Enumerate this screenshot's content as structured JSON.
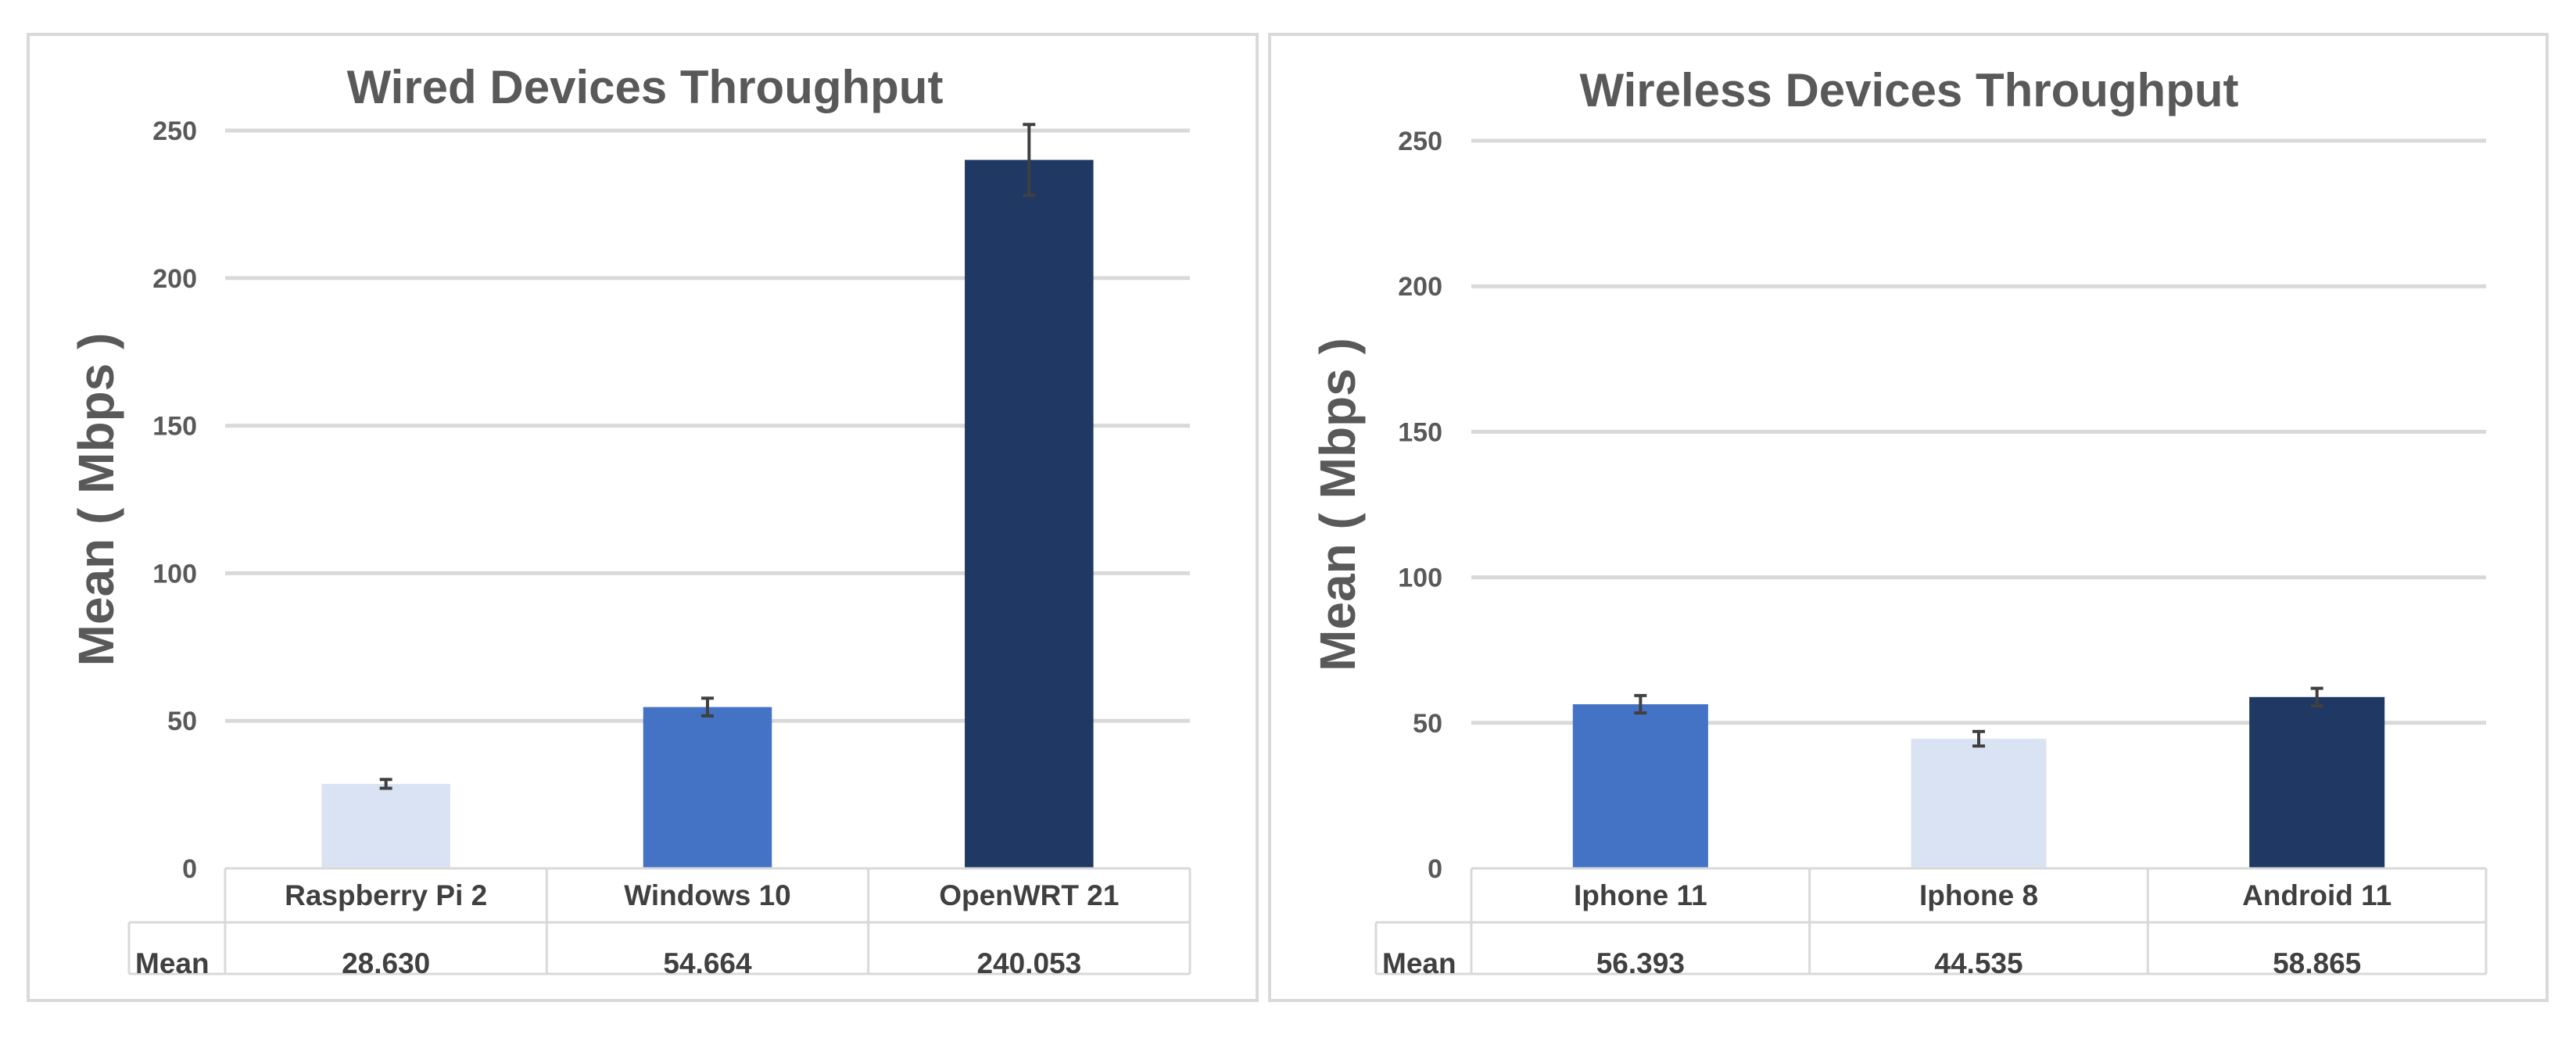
{
  "chart_data": [
    {
      "type": "bar",
      "title": "Wired Devices Throughput",
      "xlabel": "",
      "ylabel": "Mean ( Mbps )",
      "ylim": [
        0,
        250
      ],
      "yticks": [
        0,
        50,
        100,
        150,
        200,
        250
      ],
      "grid": true,
      "categories": [
        "Raspberry Pi 2",
        "Windows 10",
        "OpenWRT 21"
      ],
      "values": [
        28.63,
        54.664,
        240.053
      ],
      "error": [
        1.5,
        3,
        12
      ],
      "colors": [
        "#dae3f3",
        "#4472c4",
        "#203864"
      ],
      "table": {
        "row_label": "Mean",
        "values": [
          "28.630",
          "54.664",
          "240.053"
        ]
      }
    },
    {
      "type": "bar",
      "title": "Wireless Devices Throughput",
      "xlabel": "",
      "ylabel": "Mean ( Mbps )",
      "ylim": [
        0,
        250
      ],
      "yticks": [
        0,
        50,
        100,
        150,
        200,
        250
      ],
      "grid": true,
      "categories": [
        "Iphone 11",
        "Iphone 8",
        "Android 11"
      ],
      "values": [
        56.393,
        44.535,
        58.865
      ],
      "error": [
        3,
        2.5,
        3
      ],
      "colors": [
        "#4472c4",
        "#dae3f3",
        "#203864"
      ],
      "table": {
        "row_label": "Mean",
        "values": [
          "56.393",
          "44.535",
          "58.865"
        ]
      }
    }
  ]
}
